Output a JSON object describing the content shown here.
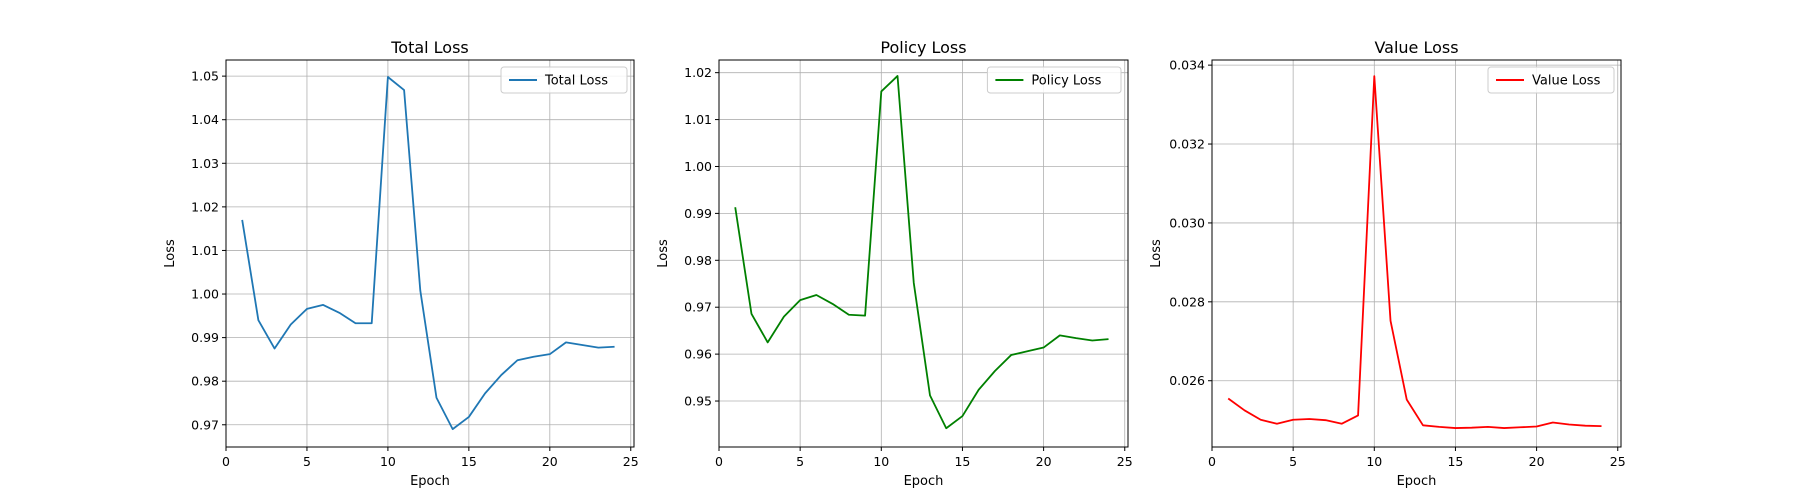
{
  "chart_data": [
    {
      "type": "line",
      "title": "Total Loss",
      "xlabel": "Epoch",
      "ylabel": "Loss",
      "xlim": [
        0,
        25.2
      ],
      "ylim": [
        0.9649,
        1.0537
      ],
      "xticks": [
        0,
        5,
        10,
        15,
        20,
        25
      ],
      "xtick_labels": [
        "0",
        "5",
        "10",
        "15",
        "20",
        "25"
      ],
      "yticks": [
        0.97,
        0.98,
        0.99,
        1.0,
        1.01,
        1.02,
        1.03,
        1.04,
        1.05
      ],
      "ytick_labels": [
        "0.97",
        "0.98",
        "0.99",
        "1.00",
        "1.01",
        "1.02",
        "1.03",
        "1.04",
        "1.05"
      ],
      "grid": true,
      "legend": "top-right",
      "series": [
        {
          "name": "Total Loss",
          "color": "#1f77b4",
          "x": [
            1,
            2,
            3,
            4,
            5,
            6,
            7,
            8,
            9,
            10,
            11,
            12,
            13,
            14,
            15,
            16,
            17,
            18,
            19,
            20,
            21,
            22,
            23,
            24
          ],
          "y": [
            1.017,
            0.994,
            0.9875,
            0.993,
            0.9966,
            0.9975,
            0.9957,
            0.9933,
            0.9933,
            1.0498,
            1.0468,
            1.0008,
            0.9762,
            0.969,
            0.9718,
            0.9772,
            0.9814,
            0.9848,
            0.9856,
            0.9862,
            0.9889,
            0.9883,
            0.9877,
            0.9879
          ]
        }
      ]
    },
    {
      "type": "line",
      "title": "Policy Loss",
      "xlabel": "Epoch",
      "ylabel": "Loss",
      "xlim": [
        0,
        25.2
      ],
      "ylim": [
        0.9402,
        1.0227
      ],
      "xticks": [
        0,
        5,
        10,
        15,
        20,
        25
      ],
      "xtick_labels": [
        "0",
        "5",
        "10",
        "15",
        "20",
        "25"
      ],
      "yticks": [
        0.95,
        0.96,
        0.97,
        0.98,
        0.99,
        1.0,
        1.01,
        1.02
      ],
      "ytick_labels": [
        "0.95",
        "0.96",
        "0.97",
        "0.98",
        "0.99",
        "1.00",
        "1.01",
        "1.02"
      ],
      "grid": true,
      "legend": "top-right",
      "series": [
        {
          "name": "Policy Loss",
          "color": "#008000",
          "x": [
            1,
            2,
            3,
            4,
            5,
            6,
            7,
            8,
            9,
            10,
            11,
            12,
            13,
            14,
            15,
            16,
            17,
            18,
            19,
            20,
            21,
            22,
            23,
            24
          ],
          "y": [
            0.9913,
            0.9686,
            0.9625,
            0.968,
            0.9715,
            0.9726,
            0.9707,
            0.9684,
            0.9682,
            1.016,
            1.0193,
            0.9752,
            0.9512,
            0.9442,
            0.9468,
            0.9524,
            0.9564,
            0.9598,
            0.9606,
            0.9614,
            0.964,
            0.9634,
            0.9629,
            0.9632
          ]
        }
      ]
    },
    {
      "type": "line",
      "title": "Value Loss",
      "xlabel": "Epoch",
      "ylabel": "Loss",
      "xlim": [
        0,
        25.2
      ],
      "ylim": [
        0.02432,
        0.03413
      ],
      "xticks": [
        0,
        5,
        10,
        15,
        20,
        25
      ],
      "xtick_labels": [
        "0",
        "5",
        "10",
        "15",
        "20",
        "25"
      ],
      "yticks": [
        0.026,
        0.028,
        0.03,
        0.032,
        0.034
      ],
      "ytick_labels": [
        "0.026",
        "0.028",
        "0.030",
        "0.032",
        "0.034"
      ],
      "grid": true,
      "legend": "top-right",
      "series": [
        {
          "name": "Value Loss",
          "color": "#ff0000",
          "x": [
            1,
            2,
            3,
            4,
            5,
            6,
            7,
            8,
            9,
            10,
            11,
            12,
            13,
            14,
            15,
            16,
            17,
            18,
            19,
            20,
            21,
            22,
            23,
            24
          ],
          "y": [
            0.02555,
            0.02525,
            0.02501,
            0.02491,
            0.02501,
            0.02503,
            0.025,
            0.02491,
            0.02512,
            0.03372,
            0.02752,
            0.02552,
            0.02487,
            0.02483,
            0.0248,
            0.02481,
            0.02483,
            0.0248,
            0.02482,
            0.02484,
            0.02494,
            0.02489,
            0.02486,
            0.02485
          ]
        }
      ]
    }
  ]
}
